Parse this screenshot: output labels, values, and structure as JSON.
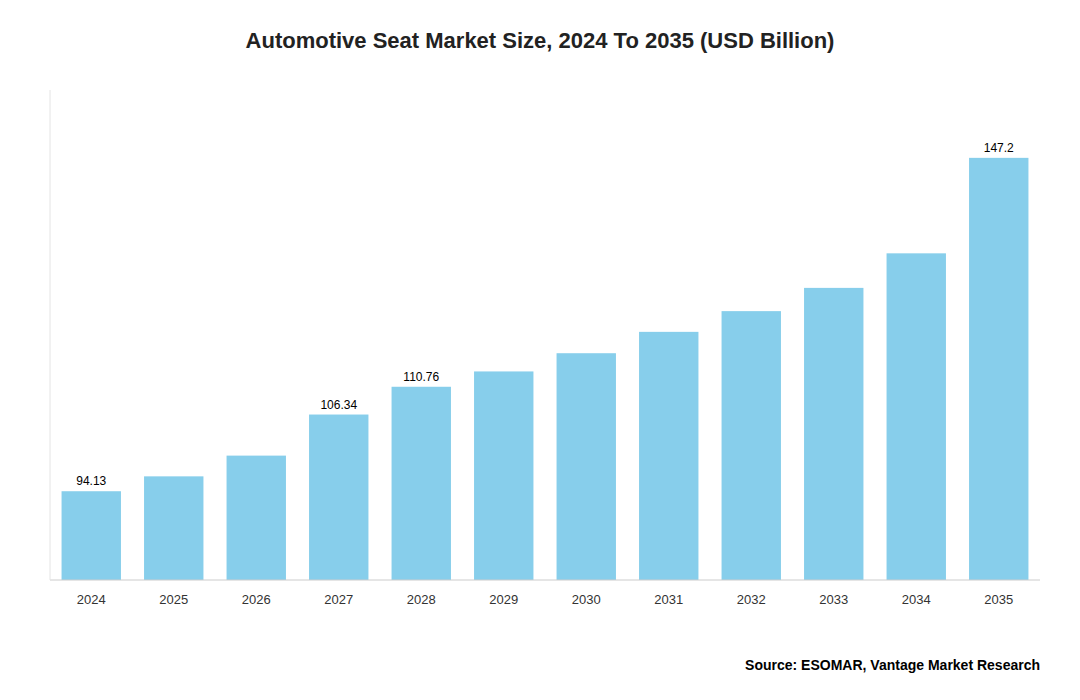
{
  "chart_data": {
    "type": "bar",
    "title": "Automotive Seat Market Size, 2024 To 2035 (USD Billion)",
    "categories": [
      "2024",
      "2025",
      "2026",
      "2027",
      "2028",
      "2029",
      "2030",
      "2031",
      "2032",
      "2033",
      "2034",
      "2035"
    ],
    "values": [
      94.13,
      96.5,
      99.8,
      106.34,
      110.76,
      113.2,
      116.1,
      119.5,
      122.8,
      126.5,
      132.0,
      147.2
    ],
    "value_labels": [
      "94.13",
      null,
      null,
      "106.34",
      "110.76",
      null,
      null,
      null,
      null,
      null,
      null,
      "147.2"
    ],
    "color": "#87CEEB",
    "ylim": [
      80,
      158
    ],
    "yticks": [],
    "tick_labels": "x",
    "grid": false,
    "annotations": [
      "Source: ESOMAR, Vantage Market Research"
    ]
  }
}
